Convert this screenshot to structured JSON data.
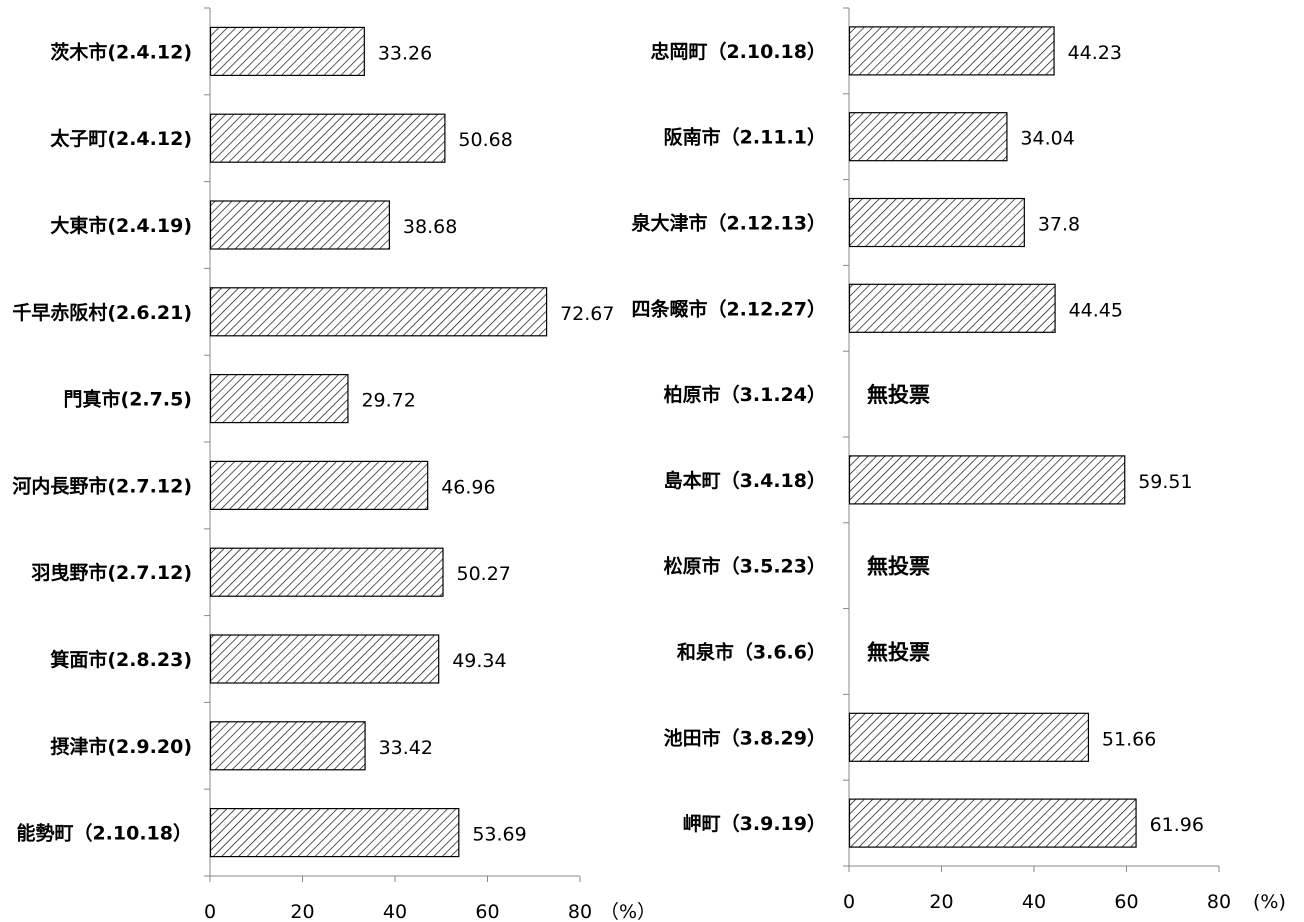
{
  "chart_data": [
    {
      "type": "bar",
      "orientation": "horizontal",
      "categories": [
        "茨木市(2.4.12)",
        "太子町(2.4.12)",
        "大東市(2.4.19)",
        "千早赤阪村(2.6.21)",
        "門真市(2.7.5)",
        "河内長野市(2.7.12)",
        "羽曳野市(2.7.12)",
        "箕面市(2.8.23)",
        "摂津市(2.9.20)",
        "能勢町（2.10.18）"
      ],
      "values": [
        33.26,
        50.68,
        38.68,
        72.67,
        29.72,
        46.96,
        50.27,
        49.34,
        33.42,
        53.69
      ],
      "value_labels": [
        "33.26",
        "50.68",
        "38.68",
        "72.67",
        "29.72",
        "46.96",
        "50.27",
        "49.34",
        "33.42",
        "53.69"
      ],
      "xlim": [
        0,
        80
      ],
      "xticks": [
        0,
        20,
        40,
        60,
        80
      ],
      "xtick_labels": [
        "0",
        "20",
        "40",
        "60",
        "80"
      ],
      "unit_label": "（%）",
      "grid": false
    },
    {
      "type": "bar",
      "orientation": "horizontal",
      "categories": [
        "忠岡町（2.10.18）",
        "阪南市（2.11.1）",
        "泉大津市（2.12.13）",
        "四条畷市（2.12.27）",
        "柏原市（3.1.24）",
        "島本町（3.4.18）",
        "松原市（3.5.23）",
        "和泉市（3.6.6）",
        "池田市（3.8.29）",
        "岬町（3.9.19）"
      ],
      "values": [
        44.23,
        34.04,
        37.8,
        44.45,
        null,
        59.51,
        null,
        null,
        51.66,
        61.96
      ],
      "value_labels": [
        "44.23",
        "34.04",
        "37.8",
        "44.45",
        "無投票",
        "59.51",
        "無投票",
        "無投票",
        "51.66",
        "61.96"
      ],
      "xlim": [
        0,
        80
      ],
      "xticks": [
        0,
        20,
        40,
        60,
        80
      ],
      "xtick_labels": [
        "0",
        "20",
        "40",
        "60",
        "80"
      ],
      "unit_label": "(%)",
      "grid": false
    }
  ]
}
